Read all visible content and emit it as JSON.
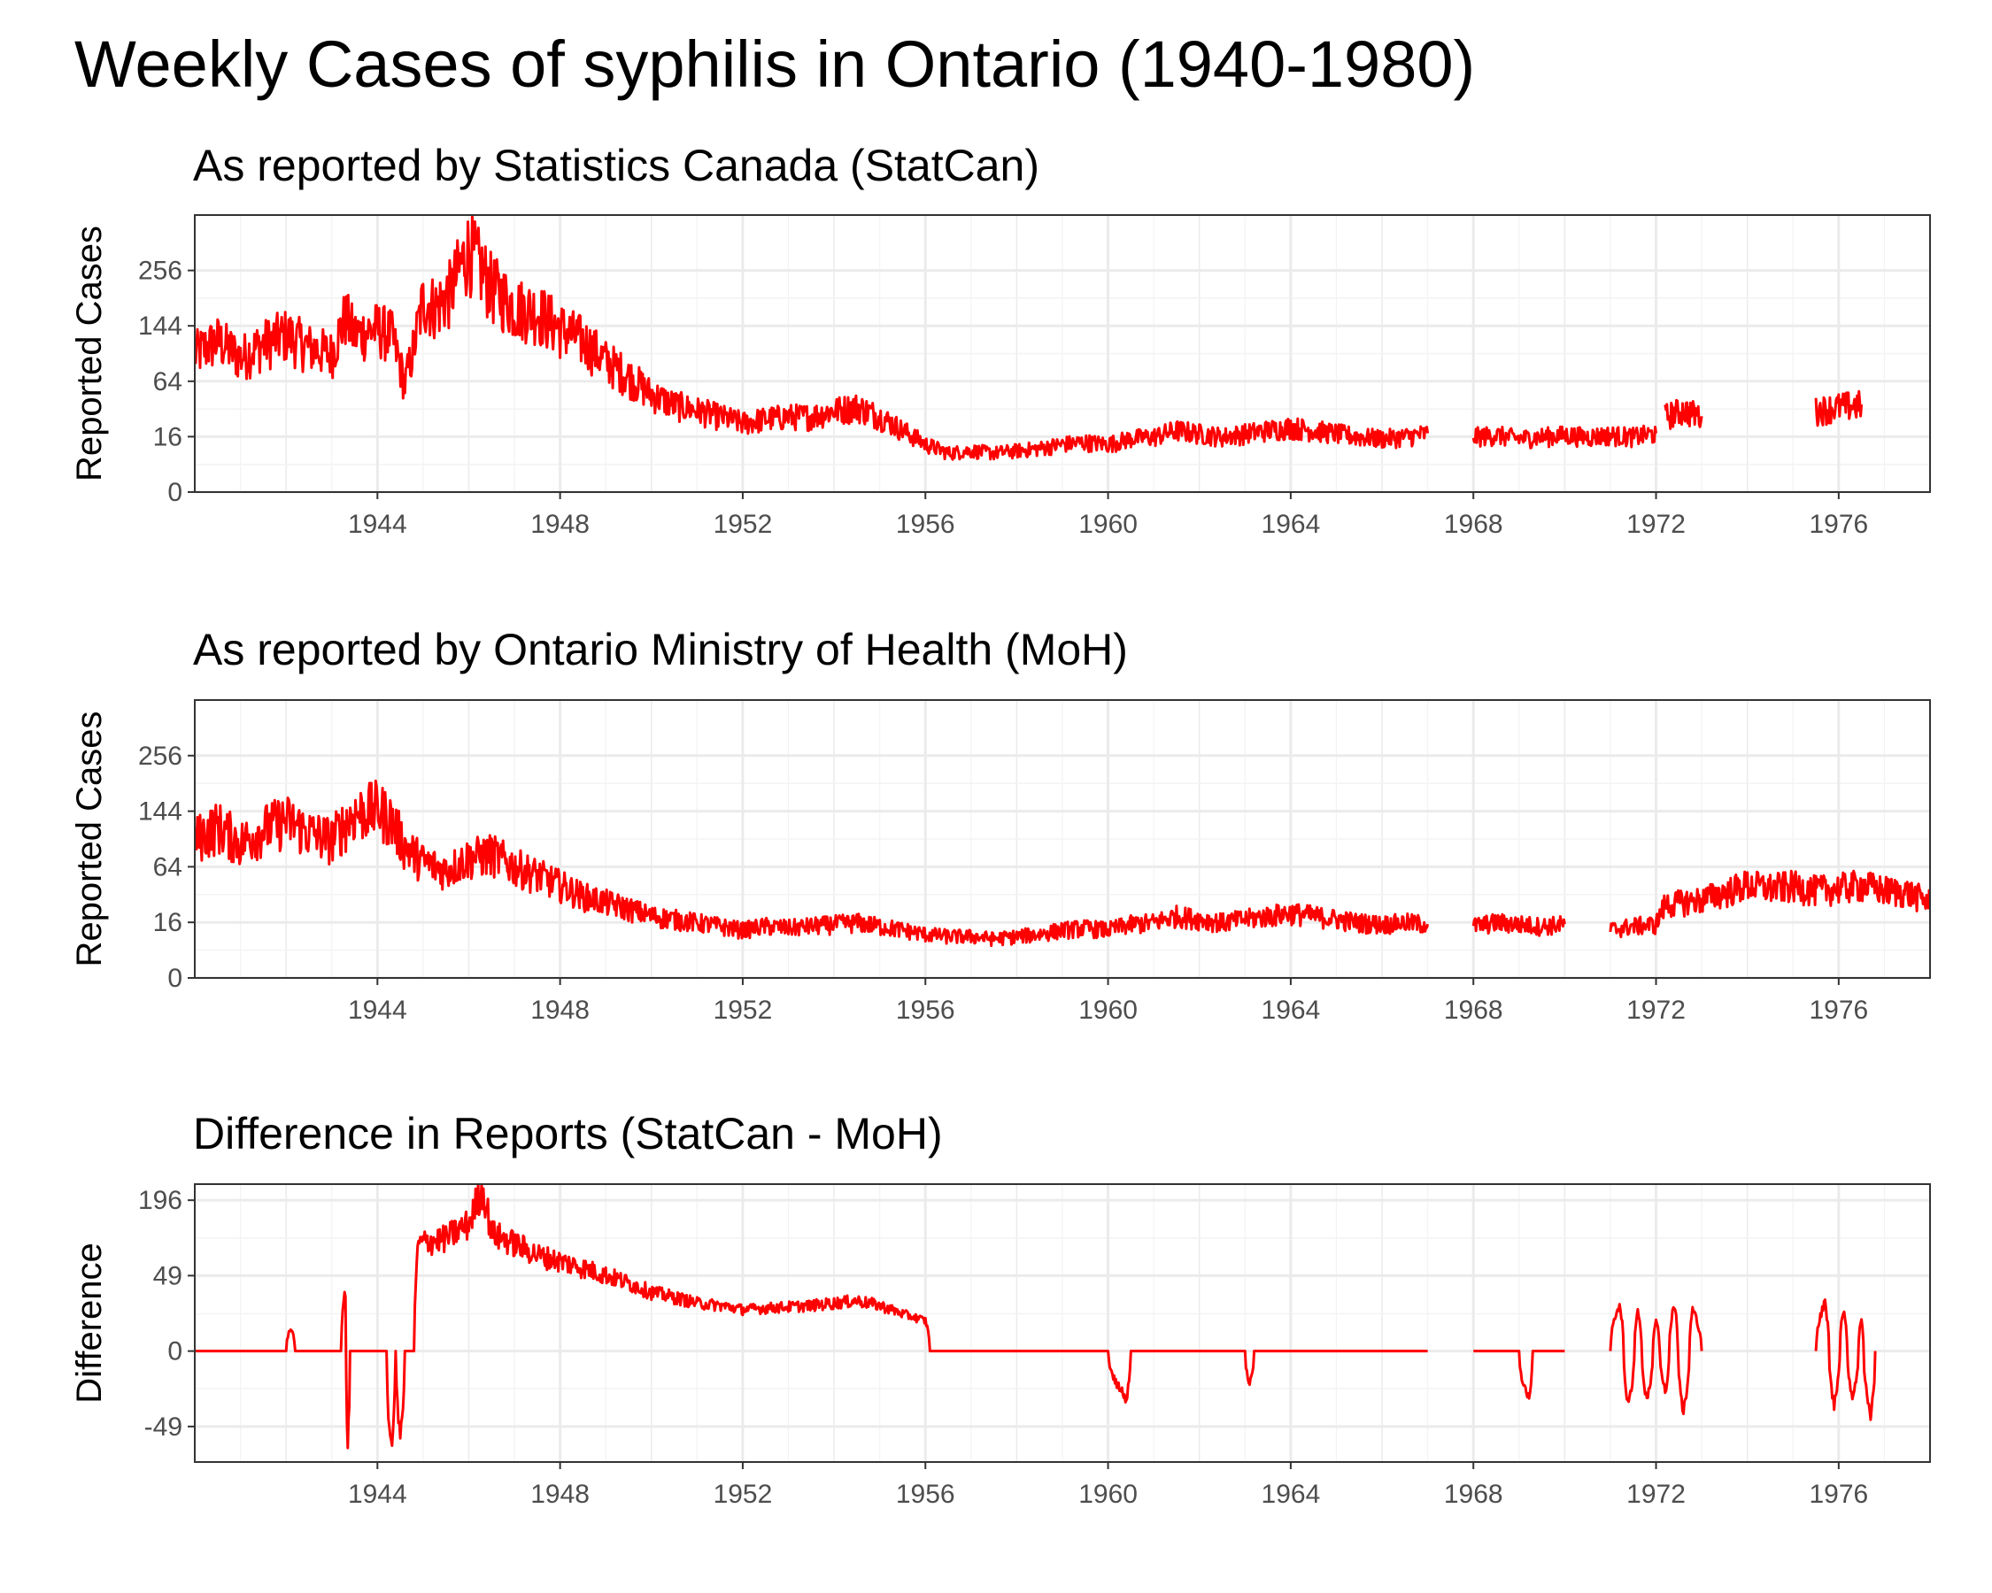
{
  "title": "Weekly Cases of syphilis in Ontario (1940-1980)",
  "colors": {
    "series": "#ff0000",
    "grid": "#ebebeb",
    "border": "#333333",
    "tick_text": "#4d4d4d"
  },
  "x_ticks": [
    "1944",
    "1948",
    "1952",
    "1956",
    "1960",
    "1964",
    "1968",
    "1972",
    "1976"
  ],
  "chart_data": [
    {
      "type": "line",
      "title": "As reported by Statistics Canada (StatCan)",
      "xlabel": "",
      "ylabel": "Reported Cases",
      "y_scale": "sqrt",
      "y_ticks": [
        "256",
        "144",
        "64",
        "16",
        "0"
      ],
      "grid": true,
      "series": [
        {
          "points": [
            [
              1940.0,
              100
            ],
            [
              1940.5,
              120
            ],
            [
              1941.0,
              95
            ],
            [
              1941.5,
              115
            ],
            [
              1942.0,
              130
            ],
            [
              1942.5,
              110
            ],
            [
              1943.0,
              100
            ],
            [
              1943.3,
              160
            ],
            [
              1943.5,
              130
            ],
            [
              1944.0,
              140
            ],
            [
              1944.3,
              130
            ],
            [
              1944.6,
              60
            ],
            [
              1944.8,
              110
            ],
            [
              1945.0,
              190
            ],
            [
              1945.3,
              180
            ],
            [
              1945.6,
              210
            ],
            [
              1946.0,
              310
            ],
            [
              1946.5,
              220
            ],
            [
              1947.0,
              180
            ],
            [
              1947.5,
              170
            ],
            [
              1948.0,
              140
            ],
            [
              1948.5,
              120
            ],
            [
              1949.0,
              90
            ],
            [
              1949.5,
              70
            ],
            [
              1950.0,
              50
            ],
            [
              1950.5,
              40
            ],
            [
              1951.0,
              35
            ],
            [
              1951.5,
              30
            ],
            [
              1952.0,
              25
            ],
            [
              1952.5,
              28
            ],
            [
              1953.0,
              30
            ],
            [
              1953.5,
              30
            ],
            [
              1954.0,
              35
            ],
            [
              1954.5,
              38
            ],
            [
              1955.0,
              30
            ],
            [
              1955.5,
              20
            ],
            [
              1956.0,
              12
            ],
            [
              1956.5,
              8
            ],
            [
              1957.0,
              9
            ],
            [
              1957.5,
              8
            ],
            [
              1958.0,
              9
            ],
            [
              1958.5,
              10
            ],
            [
              1959.0,
              12
            ],
            [
              1959.5,
              13
            ],
            [
              1960.0,
              12
            ],
            [
              1960.5,
              15
            ],
            [
              1961.0,
              16
            ],
            [
              1961.5,
              20
            ],
            [
              1962.0,
              18
            ],
            [
              1962.5,
              16
            ],
            [
              1963.0,
              18
            ],
            [
              1963.5,
              20
            ],
            [
              1964.0,
              22
            ],
            [
              1964.5,
              20
            ],
            [
              1965.0,
              18
            ],
            [
              1965.5,
              16
            ],
            [
              1966.0,
              15
            ],
            [
              1966.5,
              16
            ],
            [
              1967.0,
              18
            ]
          ]
        },
        {
          "points": [
            [
              1968.0,
              16
            ],
            [
              1968.5,
              17
            ],
            [
              1969.0,
              15
            ],
            [
              1969.5,
              16
            ],
            [
              1970.0,
              17
            ],
            [
              1970.5,
              16
            ],
            [
              1971.0,
              17
            ],
            [
              1971.5,
              16
            ],
            [
              1972.0,
              18
            ]
          ]
        },
        {
          "points": [
            [
              1972.2,
              30
            ],
            [
              1972.6,
              35
            ],
            [
              1973.0,
              30
            ]
          ]
        },
        {
          "points": [
            [
              1975.5,
              35
            ],
            [
              1976.0,
              38
            ],
            [
              1976.5,
              40
            ]
          ]
        }
      ]
    },
    {
      "type": "line",
      "title": "As reported by Ontario Ministry of Health (MoH)",
      "xlabel": "",
      "ylabel": "Reported Cases",
      "y_scale": "sqrt",
      "y_ticks": [
        "256",
        "144",
        "64",
        "16",
        "0"
      ],
      "grid": true,
      "series": [
        {
          "points": [
            [
              1940.0,
              100
            ],
            [
              1940.5,
              120
            ],
            [
              1941.0,
              95
            ],
            [
              1941.5,
              115
            ],
            [
              1942.0,
              130
            ],
            [
              1942.5,
              110
            ],
            [
              1943.0,
              100
            ],
            [
              1943.5,
              140
            ],
            [
              1944.0,
              150
            ],
            [
              1944.3,
              130
            ],
            [
              1944.6,
              90
            ],
            [
              1945.0,
              70
            ],
            [
              1945.5,
              60
            ],
            [
              1946.0,
              75
            ],
            [
              1946.5,
              80
            ],
            [
              1947.0,
              65
            ],
            [
              1947.5,
              55
            ],
            [
              1948.0,
              45
            ],
            [
              1948.5,
              35
            ],
            [
              1949.0,
              30
            ],
            [
              1949.5,
              25
            ],
            [
              1950.0,
              20
            ],
            [
              1950.5,
              18
            ],
            [
              1951.0,
              16
            ],
            [
              1951.5,
              14
            ],
            [
              1952.0,
              12
            ],
            [
              1952.5,
              14
            ],
            [
              1953.0,
              13
            ],
            [
              1953.5,
              14
            ],
            [
              1954.0,
              15
            ],
            [
              1954.5,
              16
            ],
            [
              1955.0,
              14
            ],
            [
              1955.5,
              12
            ],
            [
              1956.0,
              10
            ],
            [
              1956.5,
              9
            ],
            [
              1957.0,
              9
            ],
            [
              1957.5,
              8
            ],
            [
              1958.0,
              9
            ],
            [
              1958.5,
              10
            ],
            [
              1959.0,
              12
            ],
            [
              1959.5,
              13
            ],
            [
              1960.0,
              12
            ],
            [
              1960.5,
              15
            ],
            [
              1961.0,
              16
            ],
            [
              1961.5,
              20
            ],
            [
              1962.0,
              18
            ],
            [
              1962.5,
              16
            ],
            [
              1963.0,
              18
            ],
            [
              1963.5,
              20
            ],
            [
              1964.0,
              22
            ],
            [
              1964.5,
              20
            ],
            [
              1965.0,
              18
            ],
            [
              1965.5,
              16
            ],
            [
              1966.0,
              15
            ],
            [
              1966.5,
              16
            ],
            [
              1967.0,
              15
            ]
          ]
        },
        {
          "points": [
            [
              1968.0,
              14
            ],
            [
              1968.5,
              16
            ],
            [
              1969.0,
              15
            ],
            [
              1969.5,
              14
            ],
            [
              1970.0,
              15
            ]
          ]
        },
        {
          "points": [
            [
              1971.0,
              12
            ],
            [
              1971.5,
              14
            ],
            [
              1972.0,
              15
            ],
            [
              1972.2,
              28
            ],
            [
              1972.6,
              30
            ],
            [
              1973.0,
              32
            ],
            [
              1973.5,
              38
            ],
            [
              1974.0,
              45
            ],
            [
              1974.5,
              42
            ],
            [
              1975.0,
              44
            ],
            [
              1975.5,
              40
            ],
            [
              1976.0,
              42
            ],
            [
              1976.5,
              45
            ],
            [
              1977.0,
              40
            ],
            [
              1977.5,
              38
            ],
            [
              1978.0,
              30
            ]
          ]
        }
      ]
    },
    {
      "type": "line",
      "title": "Difference in Reports (StatCan - MoH)",
      "xlabel": "",
      "ylabel": "Difference",
      "y_scale": "sqrt",
      "y_ticks": [
        "196",
        "49",
        "0",
        "-49"
      ],
      "grid": true,
      "series": [
        {
          "points": [
            [
              1940.0,
              0
            ],
            [
              1942.0,
              0
            ],
            [
              1942.1,
              5
            ],
            [
              1942.2,
              0
            ],
            [
              1943.2,
              0
            ],
            [
              1943.3,
              30
            ],
            [
              1943.35,
              -80
            ],
            [
              1943.4,
              0
            ],
            [
              1944.2,
              0
            ],
            [
              1944.3,
              -80
            ],
            [
              1944.4,
              0
            ],
            [
              1944.5,
              -60
            ],
            [
              1944.6,
              0
            ],
            [
              1944.8,
              0
            ],
            [
              1944.9,
              100
            ],
            [
              1945.5,
              110
            ],
            [
              1946.0,
              140
            ],
            [
              1946.3,
              230
            ],
            [
              1946.5,
              120
            ],
            [
              1947.0,
              100
            ],
            [
              1947.5,
              80
            ],
            [
              1948.0,
              70
            ],
            [
              1948.5,
              60
            ],
            [
              1949.0,
              50
            ],
            [
              1949.5,
              40
            ],
            [
              1950.0,
              30
            ],
            [
              1950.5,
              25
            ],
            [
              1951.0,
              20
            ],
            [
              1951.5,
              18
            ],
            [
              1952.0,
              15
            ],
            [
              1952.5,
              16
            ],
            [
              1953.0,
              17
            ],
            [
              1953.5,
              18
            ],
            [
              1954.0,
              20
            ],
            [
              1954.5,
              22
            ],
            [
              1955.0,
              18
            ],
            [
              1955.5,
              12
            ],
            [
              1956.0,
              8
            ],
            [
              1956.1,
              0
            ],
            [
              1957.0,
              0
            ],
            [
              1958.0,
              0
            ],
            [
              1959.0,
              0
            ],
            [
              1960.0,
              0
            ],
            [
              1960.4,
              -20
            ],
            [
              1960.5,
              0
            ],
            [
              1962.0,
              0
            ],
            [
              1963.0,
              0
            ],
            [
              1963.1,
              -10
            ],
            [
              1963.2,
              0
            ],
            [
              1965.0,
              0
            ],
            [
              1967.0,
              0
            ]
          ]
        },
        {
          "points": [
            [
              1968.0,
              0
            ],
            [
              1969.0,
              0
            ],
            [
              1969.2,
              -20
            ],
            [
              1969.3,
              0
            ],
            [
              1970.0,
              0
            ]
          ]
        },
        {
          "points": [
            [
              1971.0,
              0
            ],
            [
              1971.2,
              20
            ],
            [
              1971.4,
              -25
            ],
            [
              1971.6,
              15
            ],
            [
              1971.8,
              -20
            ],
            [
              1972.0,
              10
            ],
            [
              1972.2,
              -15
            ],
            [
              1972.4,
              20
            ],
            [
              1972.6,
              -30
            ],
            [
              1972.8,
              15
            ],
            [
              1973.0,
              0
            ]
          ]
        },
        {
          "points": [
            [
              1975.5,
              0
            ],
            [
              1975.7,
              20
            ],
            [
              1975.9,
              -25
            ],
            [
              1976.1,
              15
            ],
            [
              1976.3,
              -20
            ],
            [
              1976.5,
              10
            ],
            [
              1976.7,
              -35
            ],
            [
              1976.8,
              0
            ]
          ]
        }
      ]
    }
  ]
}
